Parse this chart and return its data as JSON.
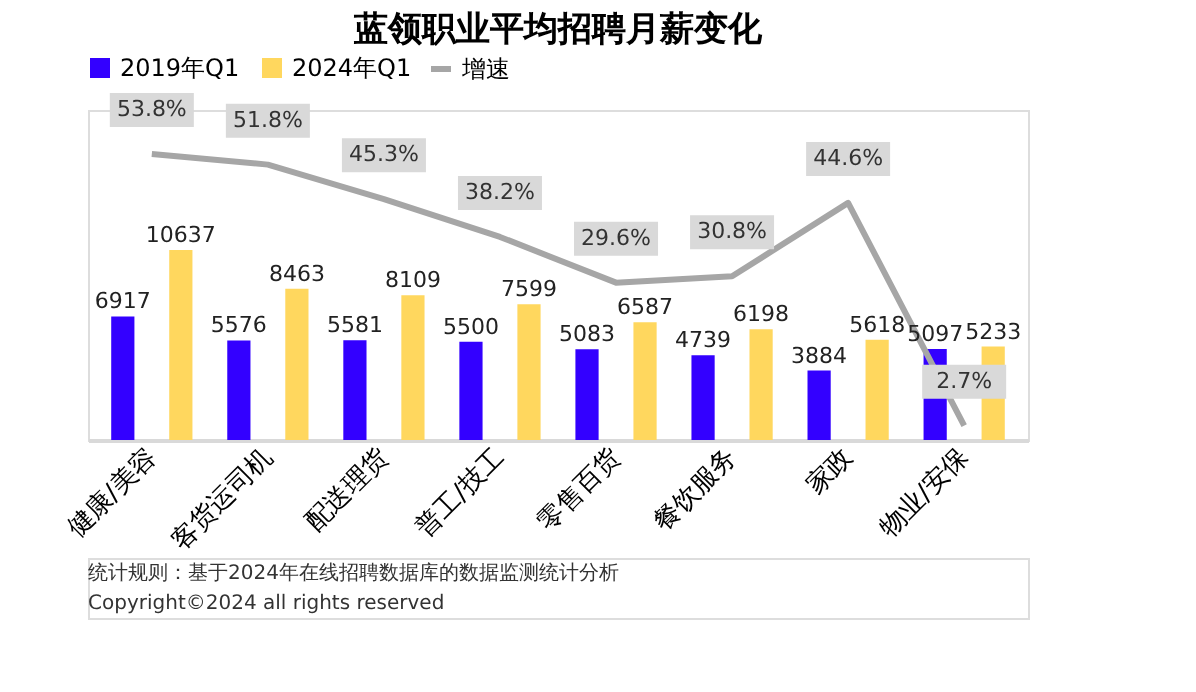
{
  "chart_data": {
    "type": "bar",
    "title": "蓝领职业平均招聘月薪变化",
    "categories": [
      "健康/美容",
      "客货运司机",
      "配送理货",
      "普工/技工",
      "零售百货",
      "餐饮服务",
      "家政",
      "物业/安保"
    ],
    "series": [
      {
        "name": "2019年Q1",
        "color": "#3300ff",
        "values": [
          6917,
          5576,
          5581,
          5500,
          5083,
          4739,
          3884,
          5097
        ]
      },
      {
        "name": "2024年Q1",
        "color": "#ffd75e",
        "values": [
          10637,
          8463,
          8109,
          7599,
          6587,
          6198,
          5618,
          5233
        ]
      },
      {
        "name": "增速",
        "type": "line",
        "axis": "y2",
        "color": "#a6a6a6",
        "values": [
          53.8,
          51.8,
          45.3,
          38.2,
          29.6,
          30.8,
          44.6,
          2.7
        ],
        "value_labels": [
          "53.8%",
          "51.8%",
          "45.3%",
          "38.2%",
          "29.6%",
          "30.8%",
          "44.6%",
          "2.7%"
        ]
      }
    ],
    "data_labels": true,
    "legend": "top",
    "grid": false,
    "annotations": [
      "统计规则：基于2024年在线招聘数据库的数据监测统计分析",
      "Copyright©2024 all rights reserved"
    ]
  }
}
